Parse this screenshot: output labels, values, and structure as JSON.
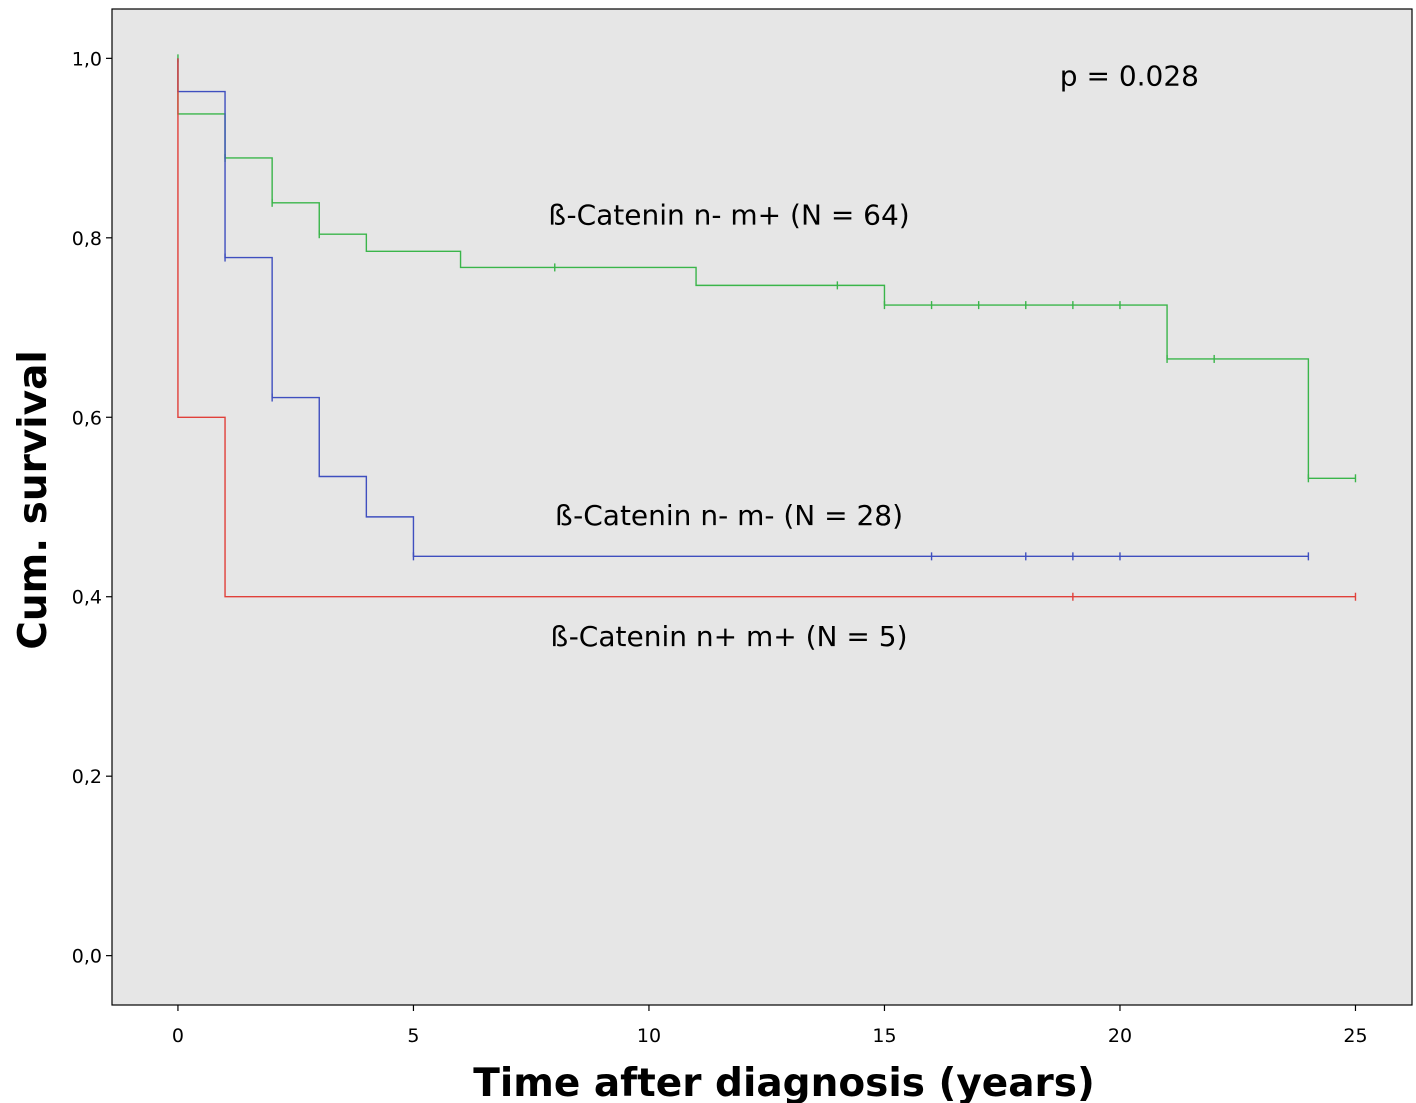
{
  "chart_data": {
    "type": "line",
    "step": true,
    "xlabel": "Time after diagnosis (years)",
    "ylabel": "Cum. survival",
    "xlim": [
      -1.4,
      26.2
    ],
    "ylim": [
      -0.055,
      1.055
    ],
    "x_ticks": [
      0,
      5,
      10,
      15,
      20,
      25
    ],
    "y_ticks": [
      {
        "value": 0.0,
        "label": "0,0"
      },
      {
        "value": 0.2,
        "label": "0,2"
      },
      {
        "value": 0.4,
        "label": "0,4"
      },
      {
        "value": 0.6,
        "label": "0,6"
      },
      {
        "value": 0.8,
        "label": "0,8"
      },
      {
        "value": 1.0,
        "label": "1,0"
      }
    ],
    "grid": false,
    "legend": "none",
    "background": "#e6e6e6",
    "series": [
      {
        "name": "ß-Catenin n- m+ (N = 64)",
        "color": "#3ab54a",
        "points": [
          [
            0,
            1.0
          ],
          [
            0,
            0.938
          ],
          [
            1,
            0.938
          ],
          [
            1,
            0.889
          ],
          [
            2,
            0.889
          ],
          [
            2,
            0.839
          ],
          [
            3,
            0.839
          ],
          [
            3,
            0.804
          ],
          [
            4,
            0.804
          ],
          [
            4,
            0.785
          ],
          [
            6,
            0.785
          ],
          [
            6,
            0.767
          ],
          [
            11,
            0.767
          ],
          [
            11,
            0.747
          ],
          [
            15,
            0.747
          ],
          [
            15,
            0.725
          ],
          [
            21,
            0.725
          ],
          [
            21,
            0.665
          ],
          [
            24,
            0.665
          ],
          [
            24,
            0.532
          ],
          [
            25,
            0.532
          ]
        ],
        "censored": [
          [
            0,
            1.0
          ],
          [
            1,
            0.889
          ],
          [
            2,
            0.839
          ],
          [
            3,
            0.804
          ],
          [
            8,
            0.767
          ],
          [
            14,
            0.747
          ],
          [
            15,
            0.725
          ],
          [
            16,
            0.725
          ],
          [
            17,
            0.725
          ],
          [
            18,
            0.725
          ],
          [
            19,
            0.725
          ],
          [
            20,
            0.725
          ],
          [
            21,
            0.665
          ],
          [
            22,
            0.665
          ],
          [
            24,
            0.532
          ],
          [
            25,
            0.532
          ]
        ]
      },
      {
        "name": "ß-Catenin n- m- (N = 28)",
        "color": "#3f4fbf",
        "points": [
          [
            0,
            1.0
          ],
          [
            0,
            0.963
          ],
          [
            1,
            0.963
          ],
          [
            1,
            0.778
          ],
          [
            2,
            0.778
          ],
          [
            2,
            0.622
          ],
          [
            3,
            0.622
          ],
          [
            3,
            0.534
          ],
          [
            4,
            0.534
          ],
          [
            4,
            0.489
          ],
          [
            5,
            0.489
          ],
          [
            5,
            0.445
          ],
          [
            24,
            0.445
          ]
        ],
        "censored": [
          [
            1,
            0.778
          ],
          [
            2,
            0.622
          ],
          [
            5,
            0.445
          ],
          [
            16,
            0.445
          ],
          [
            18,
            0.445
          ],
          [
            19,
            0.445
          ],
          [
            20,
            0.445
          ],
          [
            24,
            0.445
          ]
        ]
      },
      {
        "name": "ß-Catenin n+ m+ (N = 5)",
        "color": "#e0403a",
        "points": [
          [
            0,
            1.0
          ],
          [
            0,
            0.6
          ],
          [
            1,
            0.6
          ],
          [
            1,
            0.4
          ],
          [
            25,
            0.4
          ]
        ],
        "censored": [
          [
            19,
            0.4
          ],
          [
            25,
            0.4
          ]
        ]
      }
    ],
    "annotations": [
      {
        "text": "p = 0.028",
        "x": 20.2,
        "y": 0.97
      },
      {
        "text": "ß-Catenin n- m+ (N = 64)",
        "x": 11.7,
        "y": 0.815
      },
      {
        "text": "ß-Catenin n- m- (N = 28)",
        "x": 11.7,
        "y": 0.48
      },
      {
        "text": "ß-Catenin n+ m+ (N = 5)",
        "x": 11.7,
        "y": 0.345
      }
    ]
  }
}
